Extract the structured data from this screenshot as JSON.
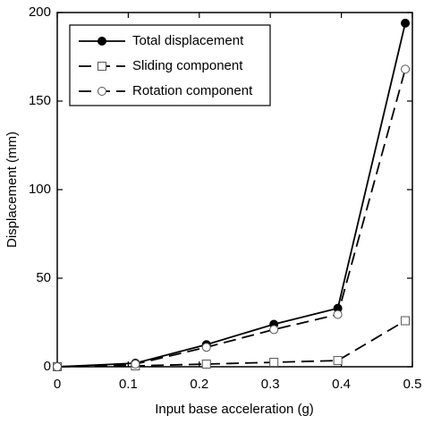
{
  "chart_data": {
    "type": "line",
    "x_label": "Input base acceleration (g)",
    "y_label": "Displacement (mm)",
    "x": [
      0,
      0.11,
      0.21,
      0.305,
      0.395,
      0.49
    ],
    "series": [
      {
        "name": "Total displacement",
        "color": "#000000",
        "dashed": false,
        "marker": "circle",
        "marker_filled": true,
        "values": [
          0,
          2,
          12.5,
          24,
          33,
          194
        ]
      },
      {
        "name": "Sliding component",
        "color": "#000000",
        "dashed": true,
        "marker": "square",
        "marker_filled": false,
        "values": [
          0,
          0.5,
          1.5,
          2.5,
          3.5,
          26
        ]
      },
      {
        "name": "Rotation component",
        "color": "#000000",
        "dashed": true,
        "marker": "circle",
        "marker_filled": false,
        "values": [
          0,
          1.5,
          11,
          21,
          29.5,
          168
        ]
      }
    ],
    "xlim": [
      0,
      0.5
    ],
    "xticks": [
      0,
      0.1,
      0.2,
      0.3,
      0.4,
      0.5
    ],
    "ylim": [
      0,
      200
    ],
    "yticks": [
      0,
      50,
      100,
      150,
      200
    ],
    "legend": "upper left",
    "grid": false
  }
}
